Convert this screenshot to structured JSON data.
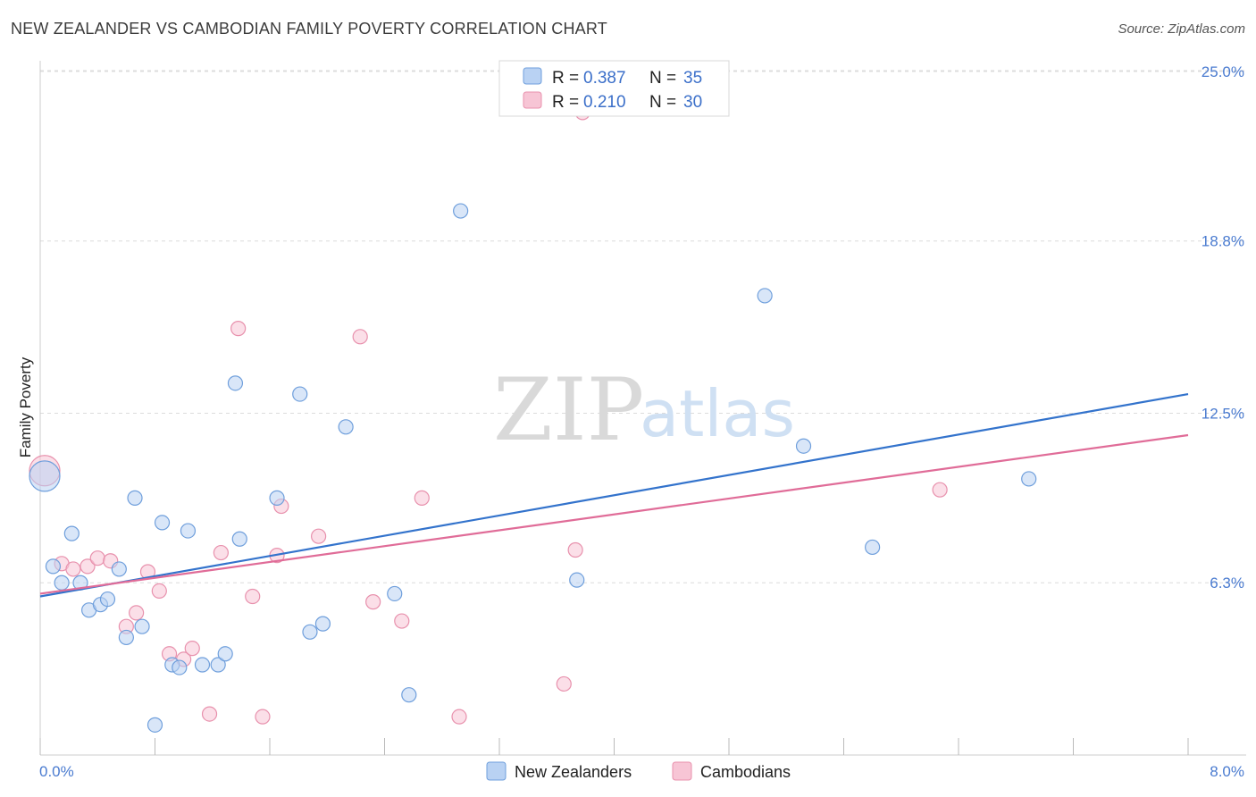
{
  "title": "NEW ZEALANDER VS CAMBODIAN FAMILY POVERTY CORRELATION CHART",
  "source": "Source: ZipAtlas.com",
  "watermark": {
    "zip": "ZIP",
    "atlas": "atlas"
  },
  "colors": {
    "blue_fill": "#b9d2f3",
    "blue_stroke": "#6f9fdc",
    "blue_line": "#3373cc",
    "pink_fill": "#f7c5d5",
    "pink_stroke": "#e891ad",
    "pink_line": "#e06c98",
    "tick_text": "#4a7bd0",
    "grid": "#dcdcdc"
  },
  "legend_top": {
    "rows": [
      {
        "r_label": "R =",
        "r_value": "0.387",
        "n_label": "N =",
        "n_value": "35",
        "series": "blue"
      },
      {
        "r_label": "R =",
        "r_value": "0.210",
        "n_label": "N =",
        "n_value": "30",
        "series": "pink"
      }
    ]
  },
  "legend_bottom": [
    "New Zealanders",
    "Cambodians"
  ],
  "chart_data": {
    "type": "scatter",
    "title": "NEW ZEALANDER VS CAMBODIAN FAMILY POVERTY CORRELATION CHART",
    "xlabel": "",
    "ylabel": "Family Poverty",
    "xlim": [
      0.0,
      8.0
    ],
    "ylim": [
      0.0,
      25.0
    ],
    "x_tick_labels": [
      "0.0%",
      "8.0%"
    ],
    "y_ticks": [
      6.3,
      12.5,
      18.8,
      25.0
    ],
    "y_tick_labels": [
      "6.3%",
      "12.5%",
      "18.8%",
      "25.0%"
    ],
    "series": [
      {
        "name": "New Zealanders",
        "color": "blue",
        "points": [
          [
            0.0,
            10.2
          ],
          [
            0.09,
            6.9
          ],
          [
            0.15,
            6.3
          ],
          [
            0.22,
            8.1
          ],
          [
            0.28,
            6.3
          ],
          [
            0.34,
            5.3
          ],
          [
            0.42,
            5.5
          ],
          [
            0.47,
            5.7
          ],
          [
            0.55,
            6.8
          ],
          [
            0.6,
            4.3
          ],
          [
            0.66,
            9.4
          ],
          [
            0.71,
            4.7
          ],
          [
            0.8,
            1.1
          ],
          [
            0.85,
            8.5
          ],
          [
            0.92,
            3.3
          ],
          [
            0.97,
            3.2
          ],
          [
            1.03,
            8.2
          ],
          [
            1.13,
            3.3
          ],
          [
            1.24,
            3.3
          ],
          [
            1.29,
            3.7
          ],
          [
            1.36,
            13.6
          ],
          [
            1.39,
            7.9
          ],
          [
            1.65,
            9.4
          ],
          [
            1.81,
            13.2
          ],
          [
            1.88,
            4.5
          ],
          [
            1.97,
            4.8
          ],
          [
            2.13,
            12.0
          ],
          [
            2.47,
            5.9
          ],
          [
            2.57,
            2.2
          ],
          [
            2.93,
            19.9
          ],
          [
            3.74,
            6.4
          ],
          [
            5.05,
            16.8
          ],
          [
            5.32,
            11.3
          ],
          [
            5.8,
            7.6
          ],
          [
            6.89,
            10.1
          ]
        ]
      },
      {
        "name": "Cambodians",
        "color": "pink",
        "points": [
          [
            0.0,
            10.4
          ],
          [
            0.15,
            7.0
          ],
          [
            0.23,
            6.8
          ],
          [
            0.33,
            6.9
          ],
          [
            0.4,
            7.2
          ],
          [
            0.49,
            7.1
          ],
          [
            0.6,
            4.7
          ],
          [
            0.67,
            5.2
          ],
          [
            0.75,
            6.7
          ],
          [
            0.83,
            6.0
          ],
          [
            0.9,
            3.7
          ],
          [
            1.0,
            3.5
          ],
          [
            1.06,
            3.9
          ],
          [
            1.18,
            1.5
          ],
          [
            1.26,
            7.4
          ],
          [
            1.38,
            15.6
          ],
          [
            1.48,
            5.8
          ],
          [
            1.55,
            1.4
          ],
          [
            1.65,
            7.3
          ],
          [
            1.68,
            9.1
          ],
          [
            1.94,
            8.0
          ],
          [
            2.23,
            15.3
          ],
          [
            2.32,
            5.6
          ],
          [
            2.52,
            4.9
          ],
          [
            2.66,
            9.4
          ],
          [
            2.92,
            1.4
          ],
          [
            3.65,
            2.6
          ],
          [
            3.73,
            7.5
          ],
          [
            3.78,
            23.5
          ],
          [
            6.27,
            9.7
          ]
        ]
      }
    ],
    "trend_lines": [
      {
        "series": "New Zealanders",
        "x": [
          0.0,
          8.0
        ],
        "y": [
          5.8,
          13.2
        ]
      },
      {
        "series": "Cambodians",
        "x": [
          0.0,
          8.0
        ],
        "y": [
          5.9,
          11.7
        ]
      }
    ]
  }
}
